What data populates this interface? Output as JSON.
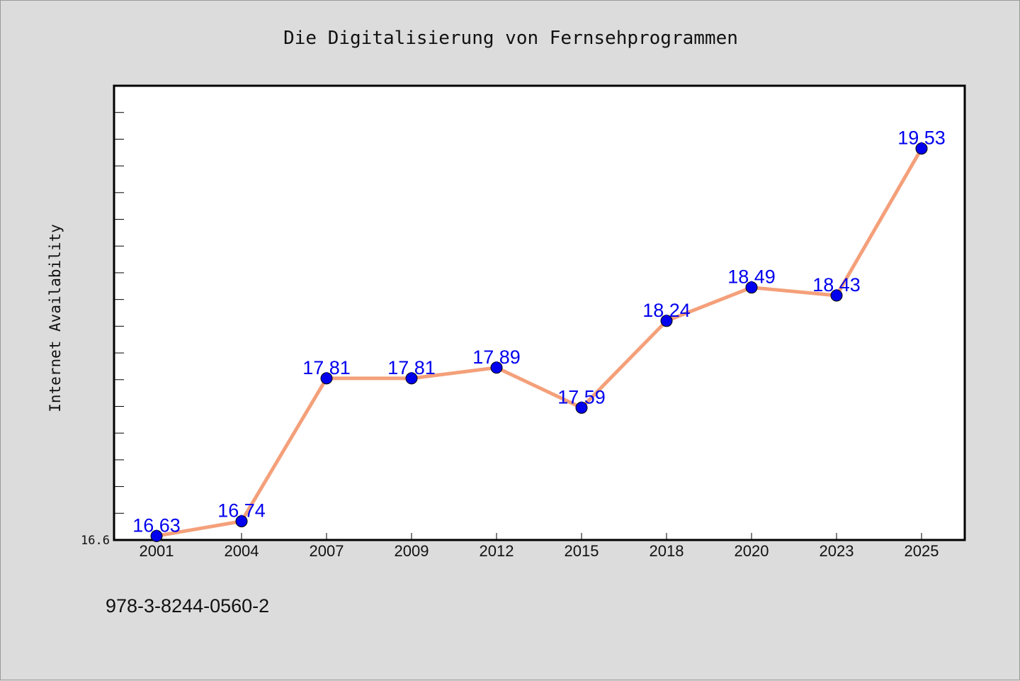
{
  "chart_data": {
    "type": "line",
    "title": "Die Digitalisierung von Fernsehprogrammen",
    "xlabel": "",
    "ylabel": "Internet Availability",
    "categories": [
      "2001",
      "2004",
      "2007",
      "2009",
      "2012",
      "2015",
      "2018",
      "2020",
      "2023",
      "2025"
    ],
    "series": [
      {
        "values": [
          16.63,
          16.74,
          17.81,
          17.81,
          17.89,
          17.59,
          18.24,
          18.49,
          18.43,
          19.53
        ],
        "labels": [
          "16.63",
          "16.74",
          "17.81",
          "17.81",
          "17.89",
          "17.59",
          "18.24",
          "18.49",
          "18.43",
          "19.53"
        ],
        "line_color": "#f4a07a",
        "marker_color": "#0000ee"
      }
    ],
    "ylim": [
      16.6,
      20.0
    ],
    "y_tick_labels": [
      {
        "value": 16.6,
        "label": "16.6"
      }
    ],
    "y_minor_step": 0.2,
    "grid": false,
    "legend": "none",
    "plot_background": "#ffffff",
    "page_background": "#dcdcdc"
  },
  "footer": {
    "isbn": "978-3-8244-0560-2"
  }
}
